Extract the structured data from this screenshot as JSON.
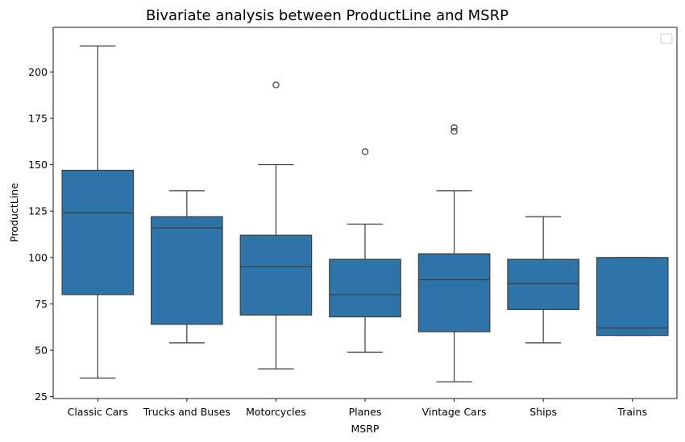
{
  "chart_data": {
    "type": "box",
    "title": "Bivariate analysis between ProductLine and MSRP",
    "xlabel": "MSRP",
    "ylabel": "ProductLine",
    "ylim": [
      24,
      224
    ],
    "yticks": [
      25,
      50,
      75,
      100,
      125,
      150,
      175,
      200
    ],
    "legend": "top-right",
    "grid": false,
    "colors": {
      "box": "#2f74a8",
      "line": "#3d3d3d",
      "background": "#ffffff"
    },
    "categories": [
      "Classic Cars",
      "Trucks and Buses",
      "Motorcycles",
      "Planes",
      "Vintage Cars",
      "Ships",
      "Trains"
    ],
    "boxes": [
      {
        "category": "Classic Cars",
        "whisker_low": 35,
        "q1": 80,
        "median": 124,
        "q3": 147,
        "whisker_high": 214,
        "outliers": []
      },
      {
        "category": "Trucks and Buses",
        "whisker_low": 54,
        "q1": 64,
        "median": 116,
        "q3": 122,
        "whisker_high": 136,
        "outliers": []
      },
      {
        "category": "Motorcycles",
        "whisker_low": 40,
        "q1": 69,
        "median": 95,
        "q3": 112,
        "whisker_high": 150,
        "outliers": [
          193
        ]
      },
      {
        "category": "Planes",
        "whisker_low": 49,
        "q1": 68,
        "median": 80,
        "q3": 99,
        "whisker_high": 118,
        "outliers": [
          157
        ]
      },
      {
        "category": "Vintage Cars",
        "whisker_low": 33,
        "q1": 60,
        "median": 88,
        "q3": 102,
        "whisker_high": 136,
        "outliers": [
          168,
          170
        ]
      },
      {
        "category": "Ships",
        "whisker_low": 54,
        "q1": 72,
        "median": 86,
        "q3": 99,
        "whisker_high": 122,
        "outliers": []
      },
      {
        "category": "Trains",
        "whisker_low": 58,
        "q1": 58,
        "median": 62,
        "q3": 100,
        "whisker_high": 100,
        "outliers": []
      }
    ]
  }
}
